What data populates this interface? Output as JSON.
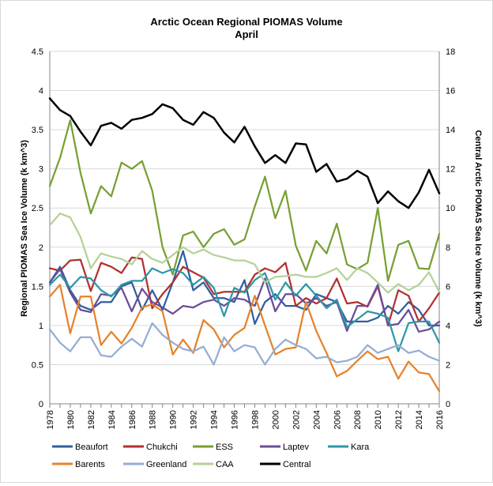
{
  "chart_data": {
    "type": "line",
    "title": "Arctic Ocean Regional PIOMAS Volume",
    "subtitle": "April",
    "ylabel": "Regional PIOMAS Sea Ice Volume (k km^3)",
    "y2label": "Central Arctic PIOMAS Sea Ice Volume (k km^3)",
    "ylim": [
      0,
      4.5
    ],
    "y2lim": [
      0,
      18
    ],
    "yticks": [
      "0",
      "0.5",
      "1",
      "1.5",
      "2",
      "2.5",
      "3",
      "3.5",
      "4",
      "4.5"
    ],
    "y2ticks": [
      "0",
      "2",
      "4",
      "6",
      "8",
      "10",
      "12",
      "14",
      "16",
      "18"
    ],
    "xticks": [
      "1978",
      "1980",
      "1982",
      "1984",
      "1986",
      "1988",
      "1990",
      "1992",
      "1994",
      "1996",
      "1998",
      "2000",
      "2002",
      "2004",
      "2006",
      "2008",
      "2010",
      "2012",
      "2014",
      "2016"
    ],
    "grid": true,
    "legend_position": "bottom",
    "x": [
      1978,
      1979,
      1980,
      1981,
      1982,
      1983,
      1984,
      1985,
      1986,
      1987,
      1988,
      1989,
      1990,
      1991,
      1992,
      1993,
      1994,
      1995,
      1996,
      1997,
      1998,
      1999,
      2000,
      2001,
      2002,
      2003,
      2004,
      2005,
      2006,
      2007,
      2008,
      2009,
      2010,
      2011,
      2012,
      2013,
      2014,
      2015,
      2016
    ],
    "series": [
      {
        "name": "Beaufort",
        "color": "#2F5F9E",
        "axis": "left",
        "values": [
          1.55,
          1.75,
          1.45,
          1.25,
          1.2,
          1.3,
          1.3,
          1.5,
          1.55,
          1.2,
          1.45,
          1.2,
          1.55,
          1.95,
          1.45,
          1.55,
          1.35,
          1.35,
          1.3,
          1.58,
          1.02,
          1.3,
          1.4,
          1.25,
          1.25,
          1.2,
          1.4,
          1.35,
          1.3,
          1.05,
          1.05,
          1.05,
          1.1,
          1.25,
          1.15,
          1.3,
          1.2,
          1.0,
          1.0
        ]
      },
      {
        "name": "Chukchi",
        "color": "#B3302F",
        "axis": "left",
        "values": [
          1.73,
          1.7,
          1.83,
          1.84,
          1.44,
          1.8,
          1.75,
          1.67,
          1.87,
          1.85,
          1.22,
          1.4,
          1.55,
          1.75,
          1.68,
          1.61,
          1.4,
          1.43,
          1.43,
          1.43,
          1.65,
          1.73,
          1.68,
          1.8,
          1.25,
          1.35,
          1.28,
          1.35,
          1.6,
          1.28,
          1.3,
          1.24,
          1.5,
          1.0,
          1.45,
          1.38,
          1.05,
          1.22,
          1.42
        ]
      },
      {
        "name": "ESS",
        "color": "#77A033",
        "axis": "left",
        "values": [
          2.78,
          3.14,
          3.62,
          2.95,
          2.43,
          2.78,
          2.65,
          3.08,
          3.0,
          3.1,
          2.72,
          2.0,
          1.65,
          2.15,
          2.2,
          2.0,
          2.17,
          2.23,
          2.03,
          2.1,
          2.52,
          2.9,
          2.37,
          2.72,
          2.02,
          1.7,
          2.08,
          1.92,
          2.3,
          1.78,
          1.72,
          1.8,
          2.5,
          1.57,
          2.03,
          2.08,
          1.73,
          1.72,
          2.17
        ]
      },
      {
        "name": "Laptev",
        "color": "#6B4C9A",
        "axis": "left",
        "values": [
          1.55,
          1.72,
          1.42,
          1.2,
          1.17,
          1.4,
          1.38,
          1.48,
          1.18,
          1.47,
          1.3,
          1.23,
          1.15,
          1.25,
          1.23,
          1.3,
          1.33,
          1.25,
          1.35,
          1.33,
          1.25,
          1.6,
          1.18,
          1.4,
          1.4,
          1.28,
          1.35,
          1.25,
          1.3,
          0.93,
          1.25,
          1.25,
          1.52,
          1.0,
          1.02,
          1.2,
          0.92,
          0.95,
          1.05
        ]
      },
      {
        "name": "Kara",
        "color": "#2D97A7",
        "axis": "left",
        "values": [
          1.52,
          1.65,
          1.48,
          1.62,
          1.6,
          1.45,
          1.37,
          1.52,
          1.57,
          1.57,
          1.73,
          1.67,
          1.72,
          1.67,
          1.52,
          1.62,
          1.48,
          1.12,
          1.48,
          1.42,
          1.58,
          1.67,
          1.33,
          1.55,
          1.38,
          1.53,
          1.38,
          1.22,
          1.33,
          0.98,
          1.08,
          1.18,
          1.15,
          1.1,
          0.67,
          1.03,
          1.05,
          1.05,
          0.78
        ]
      },
      {
        "name": "Barents",
        "color": "#E5832C",
        "axis": "left",
        "values": [
          1.37,
          1.52,
          0.9,
          1.37,
          1.37,
          0.75,
          0.92,
          0.77,
          0.97,
          1.23,
          1.27,
          1.18,
          0.63,
          0.82,
          0.65,
          1.07,
          0.95,
          0.72,
          0.88,
          0.97,
          1.38,
          1.0,
          0.63,
          0.7,
          0.72,
          1.3,
          0.93,
          0.65,
          0.35,
          0.42,
          0.55,
          0.67,
          0.57,
          0.6,
          0.32,
          0.54,
          0.4,
          0.38,
          0.16
        ]
      },
      {
        "name": "Greenland",
        "color": "#96ADD4",
        "axis": "left",
        "values": [
          0.95,
          0.78,
          0.67,
          0.85,
          0.85,
          0.62,
          0.6,
          0.73,
          0.83,
          0.73,
          1.03,
          0.88,
          0.78,
          0.7,
          0.67,
          0.73,
          0.5,
          0.85,
          0.67,
          0.75,
          0.72,
          0.5,
          0.7,
          0.82,
          0.75,
          0.7,
          0.58,
          0.6,
          0.53,
          0.55,
          0.6,
          0.75,
          0.65,
          0.7,
          0.75,
          0.65,
          0.68,
          0.6,
          0.55
        ]
      },
      {
        "name": "CAA",
        "color": "#B5D198",
        "axis": "left",
        "values": [
          2.28,
          2.43,
          2.38,
          2.13,
          1.73,
          1.92,
          1.88,
          1.85,
          1.78,
          1.95,
          1.85,
          1.8,
          1.9,
          2.0,
          1.92,
          1.97,
          1.9,
          1.87,
          1.83,
          1.83,
          1.78,
          1.55,
          1.62,
          1.63,
          1.65,
          1.62,
          1.62,
          1.67,
          1.73,
          1.58,
          1.73,
          1.67,
          1.55,
          1.42,
          1.53,
          1.45,
          1.52,
          1.68,
          1.43
        ]
      },
      {
        "name": "Central",
        "color": "#000000",
        "axis": "right",
        "values": [
          15.6,
          15.0,
          14.7,
          13.9,
          13.2,
          14.2,
          14.35,
          14.05,
          14.5,
          14.6,
          14.8,
          15.3,
          15.1,
          14.5,
          14.25,
          14.9,
          14.6,
          13.85,
          13.35,
          14.15,
          13.15,
          12.3,
          12.7,
          12.3,
          13.3,
          13.25,
          11.85,
          12.25,
          11.35,
          11.5,
          11.9,
          11.6,
          10.25,
          10.85,
          10.35,
          10.0,
          10.8,
          11.95,
          10.75
        ]
      }
    ]
  }
}
